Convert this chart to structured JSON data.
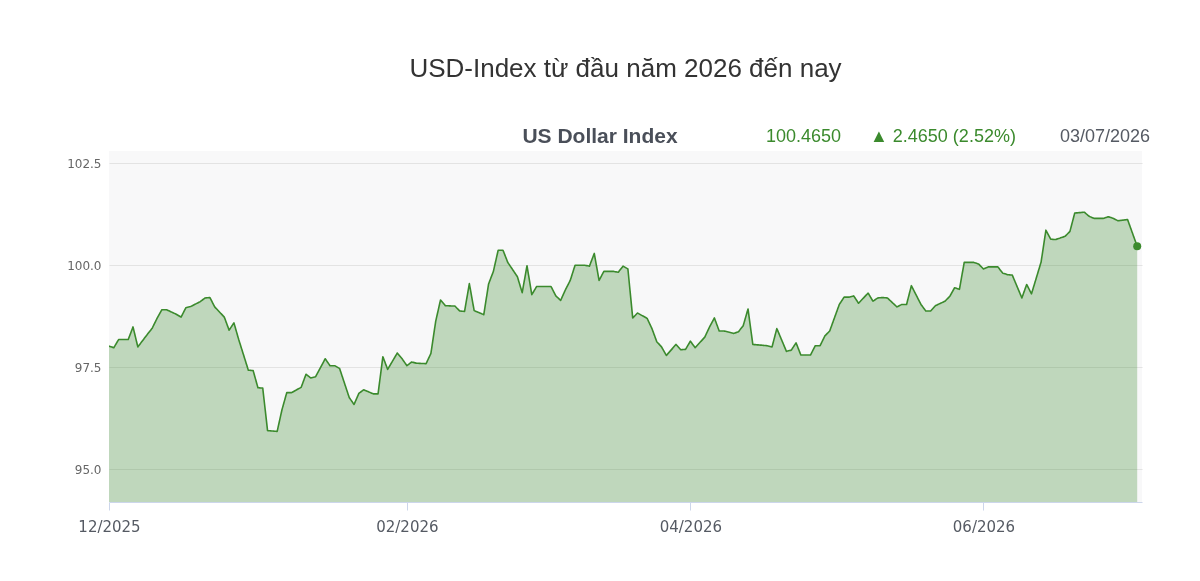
{
  "chart_data": {
    "type": "area",
    "title": "USD-Index từ đầu năm 2026 đến nay",
    "subtitle": "US Dollar Index",
    "annotations": [
      "100.4650",
      "▲ 2.4650 (2.52%)",
      "03/07/2026"
    ],
    "x": [
      "2025-12-01",
      "2025-12-02",
      "2025-12-03",
      "2025-12-05",
      "2025-12-06",
      "2025-12-07",
      "2025-12-09",
      "2025-12-10",
      "2025-12-11",
      "2025-12-12",
      "2025-12-13",
      "2025-12-15",
      "2025-12-16",
      "2025-12-17",
      "2025-12-18",
      "2025-12-20",
      "2025-12-21",
      "2025-12-22",
      "2025-12-23",
      "2025-12-25",
      "2025-12-26",
      "2025-12-27",
      "2025-12-28",
      "2025-12-30",
      "2025-12-31",
      "2026-01-01",
      "2026-01-02",
      "2026-01-03",
      "2026-01-05",
      "2026-01-06",
      "2026-01-07",
      "2026-01-08",
      "2026-01-10",
      "2026-01-11",
      "2026-01-12",
      "2026-01-13",
      "2026-01-15",
      "2026-01-16",
      "2026-01-17",
      "2026-01-18",
      "2026-01-20",
      "2026-01-21",
      "2026-01-22",
      "2026-01-23",
      "2026-01-25",
      "2026-01-26",
      "2026-01-27",
      "2026-01-28",
      "2026-01-30",
      "2026-01-31",
      "2026-02-01",
      "2026-02-02",
      "2026-02-03",
      "2026-02-05",
      "2026-02-06",
      "2026-02-07",
      "2026-02-08",
      "2026-02-09",
      "2026-02-11",
      "2026-02-12",
      "2026-02-13",
      "2026-02-14",
      "2026-02-15",
      "2026-02-17",
      "2026-02-18",
      "2026-02-19",
      "2026-02-20",
      "2026-02-21",
      "2026-02-22",
      "2026-02-24",
      "2026-02-25",
      "2026-02-26",
      "2026-02-27",
      "2026-02-28",
      "2026-03-01",
      "2026-03-03",
      "2026-03-04",
      "2026-03-05",
      "2026-03-06",
      "2026-03-07",
      "2026-03-08",
      "2026-03-10",
      "2026-03-11",
      "2026-03-12",
      "2026-03-13",
      "2026-03-14",
      "2026-03-16",
      "2026-03-17",
      "2026-03-18",
      "2026-03-19",
      "2026-03-20",
      "2026-03-21",
      "2026-03-23",
      "2026-03-24",
      "2026-03-25",
      "2026-03-26",
      "2026-03-27",
      "2026-03-29",
      "2026-03-30",
      "2026-03-31",
      "2026-04-01",
      "2026-04-02",
      "2026-04-04",
      "2026-04-05",
      "2026-04-06",
      "2026-04-07",
      "2026-04-08",
      "2026-04-10",
      "2026-04-11",
      "2026-04-12",
      "2026-04-13",
      "2026-04-14",
      "2026-04-16",
      "2026-04-17",
      "2026-04-18",
      "2026-04-19",
      "2026-04-21",
      "2026-04-22",
      "2026-04-23",
      "2026-04-24",
      "2026-04-26",
      "2026-04-27",
      "2026-04-28",
      "2026-04-29",
      "2026-04-30",
      "2026-05-02",
      "2026-05-03",
      "2026-05-04",
      "2026-05-05",
      "2026-05-06",
      "2026-05-08",
      "2026-05-09",
      "2026-05-10",
      "2026-05-11",
      "2026-05-12",
      "2026-05-14",
      "2026-05-15",
      "2026-05-16",
      "2026-05-17",
      "2026-05-19",
      "2026-05-20",
      "2026-05-21",
      "2026-05-22",
      "2026-05-24",
      "2026-05-25",
      "2026-05-26",
      "2026-05-27",
      "2026-05-28",
      "2026-05-30",
      "2026-05-31",
      "2026-06-01",
      "2026-06-02",
      "2026-06-04",
      "2026-06-05",
      "2026-06-06",
      "2026-06-07",
      "2026-06-09",
      "2026-06-10",
      "2026-06-11",
      "2026-06-13",
      "2026-06-14",
      "2026-06-15",
      "2026-06-16",
      "2026-06-18",
      "2026-06-19",
      "2026-06-20",
      "2026-06-22",
      "2026-06-23",
      "2026-06-24",
      "2026-06-26",
      "2026-06-27",
      "2026-06-28",
      "2026-06-29",
      "2026-07-01",
      "2026-07-03"
    ],
    "series": [
      {
        "color": "#3b8a2d",
        "values": [
          98.02,
          97.98,
          98.18,
          98.18,
          98.49,
          98.0,
          98.31,
          98.46,
          98.7,
          98.91,
          98.91,
          98.8,
          98.73,
          98.96,
          98.99,
          99.11,
          99.2,
          99.21,
          98.98,
          98.73,
          98.41,
          98.59,
          98.18,
          97.43,
          97.42,
          97.0,
          96.99,
          95.95,
          95.93,
          96.46,
          96.88,
          96.88,
          97.01,
          97.33,
          97.24,
          97.27,
          97.71,
          97.54,
          97.54,
          97.47,
          96.76,
          96.59,
          96.86,
          96.95,
          96.85,
          96.85,
          97.76,
          97.45,
          97.85,
          97.71,
          97.54,
          97.63,
          97.6,
          97.59,
          97.84,
          98.63,
          99.15,
          99.01,
          99.0,
          98.88,
          98.87,
          99.55,
          98.89,
          98.79,
          99.54,
          99.85,
          100.37,
          100.37,
          100.07,
          99.72,
          99.33,
          99.99,
          99.28,
          99.48,
          99.48,
          99.48,
          99.25,
          99.14,
          99.4,
          99.63,
          100.0,
          100.0,
          99.98,
          100.29,
          99.63,
          99.85,
          99.85,
          99.83,
          99.98,
          99.91,
          98.71,
          98.83,
          98.7,
          98.45,
          98.13,
          98.0,
          97.79,
          98.06,
          97.93,
          97.94,
          98.14,
          97.98,
          98.24,
          98.49,
          98.71,
          98.39,
          98.39,
          98.33,
          98.37,
          98.52,
          98.93,
          98.06,
          98.04,
          98.03,
          98.0,
          98.45,
          97.89,
          97.92,
          98.1,
          97.8,
          97.8,
          98.03,
          98.03,
          98.27,
          98.39,
          99.04,
          99.22,
          99.22,
          99.25,
          99.07,
          99.32,
          99.12,
          99.2,
          99.21,
          99.2,
          98.98,
          99.04,
          99.04,
          99.5,
          99.04,
          98.88,
          98.88,
          99.01,
          99.12,
          99.24,
          99.45,
          99.41,
          100.07,
          100.07,
          100.03,
          99.91,
          99.96,
          99.96,
          99.81,
          99.77,
          99.76,
          99.2,
          99.53,
          99.3,
          100.08,
          100.86,
          100.64,
          100.63,
          100.71,
          100.83,
          101.28,
          101.3,
          101.2,
          101.15,
          101.15,
          101.19,
          101.15,
          101.09,
          101.12,
          100.465
        ]
      },
      {
        "type": "scatter",
        "color": "#3b8a2d",
        "marker": "circle",
        "x": [
          "2026-07-03"
        ],
        "values": [
          100.465
        ]
      }
    ],
    "xlim": [
      "2025-12-01",
      "2026-07-04"
    ],
    "xticks": [
      {
        "value": "2025-12-01",
        "label": "12/2025"
      },
      {
        "value": "2026-02-01",
        "label": "02/2026"
      },
      {
        "value": "2026-04-01",
        "label": "04/2026"
      },
      {
        "value": "2026-06-01",
        "label": "06/2026"
      }
    ],
    "ylim": [
      94.2,
      102.8
    ],
    "yticks": [
      {
        "value": 95,
        "label": "95.0"
      },
      97.5,
      {
        "value": 100,
        "label": "100.0"
      },
      102.5
    ],
    "grid": "y"
  }
}
